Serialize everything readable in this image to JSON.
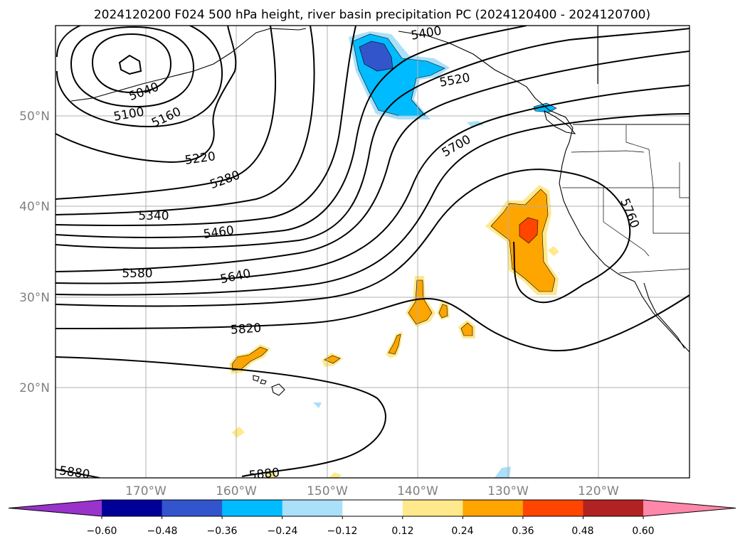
{
  "chart_data": {
    "type": "contour_map",
    "title": "2024120200 F024 500 hPa height, river basin precipitation PC (2024120400 - 2024120700)",
    "lon_ticks": [
      "170°W",
      "160°W",
      "150°W",
      "140°W",
      "130°W",
      "120°W"
    ],
    "lat_ticks": [
      "50°N",
      "40°N",
      "30°N",
      "20°N"
    ],
    "lon_range": [
      -180,
      -110
    ],
    "lat_range": [
      10,
      60
    ],
    "grid": true,
    "contour_labels": [
      "5040",
      "5100",
      "5160",
      "5220",
      "5280",
      "5340",
      "5460",
      "5580",
      "5640",
      "5820",
      "5880",
      "5880",
      "5400",
      "5520",
      "5700",
      "5760"
    ],
    "colorbar": {
      "ticks": [
        "−0.60",
        "−0.48",
        "−0.36",
        "−0.24",
        "−0.12",
        "0.12",
        "0.24",
        "0.36",
        "0.48",
        "0.60"
      ],
      "colors": [
        "#9933cc",
        "#000099",
        "#3355cc",
        "#00bbff",
        "#aae0f8",
        "#ffffff",
        "#ffe98c",
        "#ffa500",
        "#ff4500",
        "#b22222",
        "#ff88aa"
      ]
    },
    "precip_colors": {
      "pos_low": "#ffe98c",
      "pos_mid": "#ffa500",
      "pos_high": "#ff4500",
      "neg_low": "#aae0f8",
      "neg_mid": "#00bbff",
      "neg_high": "#3355cc"
    }
  }
}
